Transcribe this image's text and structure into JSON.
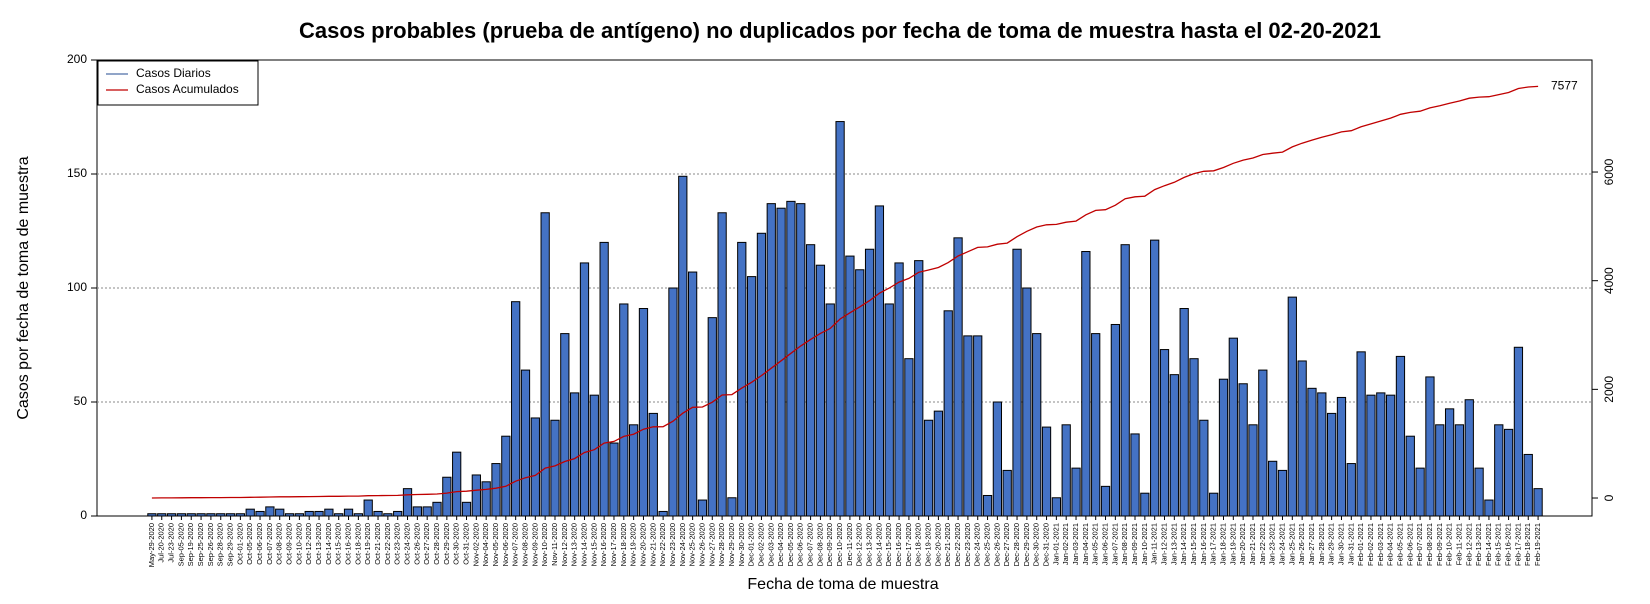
{
  "chart_data": {
    "type": "bar",
    "title": "Casos probables (prueba de antígeno) no duplicados por fecha de toma de muestra hasta el 02-20-2021",
    "x_label": "Fecha de toma de muestra",
    "y_label": "Casos por fecha de toma de muestra",
    "categories": [
      "May-29-2020",
      "Jul-20-2020",
      "Jul-23-2020",
      "Sep-05-2020",
      "Sep-19-2020",
      "Sep-25-2020",
      "Sep-26-2020",
      "Sep-28-2020",
      "Sep-29-2020",
      "Oct-01-2020",
      "Oct-05-2020",
      "Oct-06-2020",
      "Oct-07-2020",
      "Oct-08-2020",
      "Oct-09-2020",
      "Oct-10-2020",
      "Oct-12-2020",
      "Oct-13-2020",
      "Oct-14-2020",
      "Oct-15-2020",
      "Oct-16-2020",
      "Oct-18-2020",
      "Oct-19-2020",
      "Oct-21-2020",
      "Oct-22-2020",
      "Oct-23-2020",
      "Oct-24-2020",
      "Oct-26-2020",
      "Oct-27-2020",
      "Oct-28-2020",
      "Oct-29-2020",
      "Oct-30-2020",
      "Oct-31-2020",
      "Nov-02-2020",
      "Nov-04-2020",
      "Nov-05-2020",
      "Nov-06-2020",
      "Nov-07-2020",
      "Nov-08-2020",
      "Nov-09-2020",
      "Nov-10-2020",
      "Nov-11-2020",
      "Nov-12-2020",
      "Nov-13-2020",
      "Nov-14-2020",
      "Nov-15-2020",
      "Nov-16-2020",
      "Nov-17-2020",
      "Nov-18-2020",
      "Nov-19-2020",
      "Nov-20-2020",
      "Nov-21-2020",
      "Nov-22-2020",
      "Nov-23-2020",
      "Nov-24-2020",
      "Nov-25-2020",
      "Nov-26-2020",
      "Nov-27-2020",
      "Nov-28-2020",
      "Nov-29-2020",
      "Nov-30-2020",
      "Dec-01-2020",
      "Dec-02-2020",
      "Dec-03-2020",
      "Dec-04-2020",
      "Dec-05-2020",
      "Dec-06-2020",
      "Dec-07-2020",
      "Dec-08-2020",
      "Dec-09-2020",
      "Dec-10-2020",
      "Dec-11-2020",
      "Dec-12-2020",
      "Dec-13-2020",
      "Dec-14-2020",
      "Dec-15-2020",
      "Dec-16-2020",
      "Dec-17-2020",
      "Dec-18-2020",
      "Dec-19-2020",
      "Dec-20-2020",
      "Dec-21-2020",
      "Dec-22-2020",
      "Dec-23-2020",
      "Dec-24-2020",
      "Dec-25-2020",
      "Dec-26-2020",
      "Dec-27-2020",
      "Dec-28-2020",
      "Dec-29-2020",
      "Dec-30-2020",
      "Dec-31-2020",
      "Jan-01-2021",
      "Jan-02-2021",
      "Jan-03-2021",
      "Jan-04-2021",
      "Jan-05-2021",
      "Jan-06-2021",
      "Jan-07-2021",
      "Jan-08-2021",
      "Jan-09-2021",
      "Jan-10-2021",
      "Jan-11-2021",
      "Jan-12-2021",
      "Jan-13-2021",
      "Jan-14-2021",
      "Jan-15-2021",
      "Jan-16-2021",
      "Jan-17-2021",
      "Jan-18-2021",
      "Jan-19-2021",
      "Jan-20-2021",
      "Jan-21-2021",
      "Jan-22-2021",
      "Jan-23-2021",
      "Jan-24-2021",
      "Jan-25-2021",
      "Jan-26-2021",
      "Jan-27-2021",
      "Jan-28-2021",
      "Jan-29-2021",
      "Jan-30-2021",
      "Jan-31-2021",
      "Feb-01-2021",
      "Feb-02-2021",
      "Feb-03-2021",
      "Feb-04-2021",
      "Feb-05-2021",
      "Feb-06-2021",
      "Feb-07-2021",
      "Feb-08-2021",
      "Feb-09-2021",
      "Feb-10-2021",
      "Feb-11-2021",
      "Feb-12-2021",
      "Feb-13-2021",
      "Feb-14-2021",
      "Feb-15-2021",
      "Feb-16-2021",
      "Feb-17-2021",
      "Feb-18-2021",
      "Feb-19-2021"
    ],
    "series": [
      {
        "name": "Casos Diarios",
        "color": "#4472c4",
        "line_color": "#4f6fa8",
        "values": [
          1,
          1,
          1,
          1,
          1,
          1,
          1,
          1,
          1,
          1,
          3,
          2,
          4,
          3,
          1,
          1,
          2,
          2,
          3,
          1,
          3,
          1,
          7,
          2,
          1,
          2,
          12,
          4,
          4,
          6,
          17,
          28,
          6,
          18,
          15,
          23,
          35,
          94,
          64,
          43,
          133,
          42,
          80,
          54,
          111,
          53,
          120,
          32,
          93,
          40,
          91,
          45,
          2,
          100,
          149,
          107,
          7,
          87,
          133,
          8,
          120,
          105,
          124,
          137,
          135,
          138,
          137,
          119,
          110,
          93,
          173,
          114,
          108,
          117,
          136,
          93,
          111,
          69,
          112,
          42,
          46,
          90,
          122,
          79,
          79,
          9,
          50,
          20,
          117,
          100,
          80,
          39,
          8,
          40,
          21,
          116,
          80,
          13,
          84,
          119,
          36,
          10,
          121,
          73,
          62,
          91,
          69,
          42,
          10,
          60,
          78,
          58,
          40,
          64,
          24,
          20,
          96,
          68,
          56,
          54,
          45,
          52,
          23,
          72,
          53,
          54,
          53,
          70,
          35,
          21,
          61,
          40,
          47,
          40,
          51,
          21,
          7,
          40,
          38,
          74,
          27,
          12
        ]
      },
      {
        "name": "Casos Acumulados",
        "color": "#c00000",
        "axis": "y2",
        "cumulative_of": 0,
        "end_label": 7577
      }
    ],
    "ylim": [
      0,
      200
    ],
    "yticks": [
      0,
      50,
      100,
      150,
      200
    ],
    "y2lim": [
      -331,
      8062
    ],
    "y2ticks": [
      0,
      2000,
      4000,
      6000
    ],
    "grid": true,
    "legend": "top-left"
  }
}
